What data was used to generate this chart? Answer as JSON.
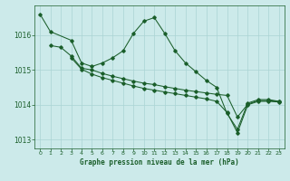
{
  "title": "Graphe pression niveau de la mer (hPa)",
  "bg_color": "#cceaea",
  "grid_color": "#aad4d4",
  "line_color": "#1a5e2a",
  "xlim": [
    -0.5,
    23.5
  ],
  "ylim": [
    1012.75,
    1016.85
  ],
  "yticks": [
    1013,
    1014,
    1015,
    1016
  ],
  "xticks": [
    0,
    1,
    2,
    3,
    4,
    5,
    6,
    7,
    8,
    9,
    10,
    11,
    12,
    13,
    14,
    15,
    16,
    17,
    18,
    19,
    20,
    21,
    22,
    23
  ],
  "s1_x": [
    0,
    1,
    3,
    4,
    5,
    6,
    7,
    8,
    9,
    10,
    11,
    12,
    13,
    14,
    15,
    16,
    17,
    18,
    19,
    20,
    21,
    22,
    23
  ],
  "s1_y": [
    1016.6,
    1016.1,
    1015.85,
    1015.2,
    1015.1,
    1015.2,
    1015.35,
    1015.55,
    1016.05,
    1016.4,
    1016.5,
    1016.05,
    1015.55,
    1015.2,
    1014.95,
    1014.7,
    1014.5,
    1013.75,
    1013.3,
    1014.05,
    1014.15,
    1014.15,
    1014.1
  ],
  "s2_x": [
    1,
    2,
    3,
    4,
    5,
    6,
    7,
    8,
    9,
    10,
    11,
    12,
    13,
    14,
    15,
    16,
    17,
    18,
    19,
    20,
    21,
    22,
    23
  ],
  "s2_y": [
    1015.7,
    1015.65,
    1015.4,
    1015.05,
    1015.0,
    1014.9,
    1014.82,
    1014.75,
    1014.68,
    1014.62,
    1014.58,
    1014.52,
    1014.47,
    1014.42,
    1014.38,
    1014.34,
    1014.3,
    1014.27,
    1013.65,
    1014.02,
    1014.12,
    1014.12,
    1014.1
  ],
  "s3_x": [
    3,
    4,
    5,
    6,
    7,
    8,
    9,
    10,
    11,
    12,
    13,
    14,
    15,
    16,
    17,
    18,
    19,
    20,
    21,
    22,
    23
  ],
  "s3_y": [
    1015.35,
    1015.02,
    1014.88,
    1014.78,
    1014.7,
    1014.62,
    1014.54,
    1014.47,
    1014.42,
    1014.37,
    1014.32,
    1014.27,
    1014.22,
    1014.17,
    1014.1,
    1013.78,
    1013.2,
    1014.0,
    1014.1,
    1014.1,
    1014.08
  ]
}
